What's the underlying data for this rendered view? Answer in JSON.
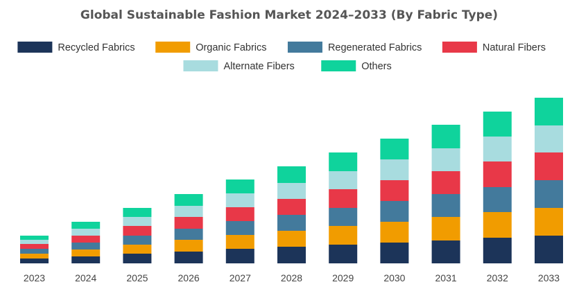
{
  "chart_data": {
    "type": "bar",
    "stacked": true,
    "title": "Global Sustainable Fashion Market 2024–2033 (By Fabric Type)",
    "xlabel": "",
    "ylabel": "",
    "ylim": [
      0,
      240
    ],
    "grid": false,
    "legend_position": "top-center",
    "categories": [
      "2023",
      "2024",
      "2025",
      "2026",
      "2027",
      "2028",
      "2029",
      "2030",
      "2031",
      "2032",
      "2033"
    ],
    "series": [
      {
        "name": "Recycled Fabrics",
        "color": "#1c3459",
        "values": [
          7,
          10,
          14,
          17,
          21,
          24,
          27,
          30,
          33,
          37,
          40
        ]
      },
      {
        "name": "Organic Fabrics",
        "color": "#f19c00",
        "values": [
          7,
          10,
          13,
          17,
          20,
          23,
          27,
          30,
          34,
          37,
          40
        ]
      },
      {
        "name": "Regenerated Fabrics",
        "color": "#437a9c",
        "values": [
          7,
          10,
          13,
          16,
          20,
          23,
          26,
          30,
          33,
          36,
          40
        ]
      },
      {
        "name": "Natural Fibers",
        "color": "#e83848",
        "values": [
          7,
          10,
          14,
          17,
          20,
          23,
          27,
          30,
          33,
          37,
          40
        ]
      },
      {
        "name": "Alternate Fibers",
        "color": "#a8dcdf",
        "values": [
          6,
          10,
          13,
          16,
          20,
          23,
          26,
          30,
          33,
          36,
          39
        ]
      },
      {
        "name": "Others",
        "color": "#0fd39c",
        "values": [
          6,
          10,
          13,
          17,
          20,
          24,
          27,
          30,
          34,
          36,
          40
        ]
      }
    ]
  }
}
